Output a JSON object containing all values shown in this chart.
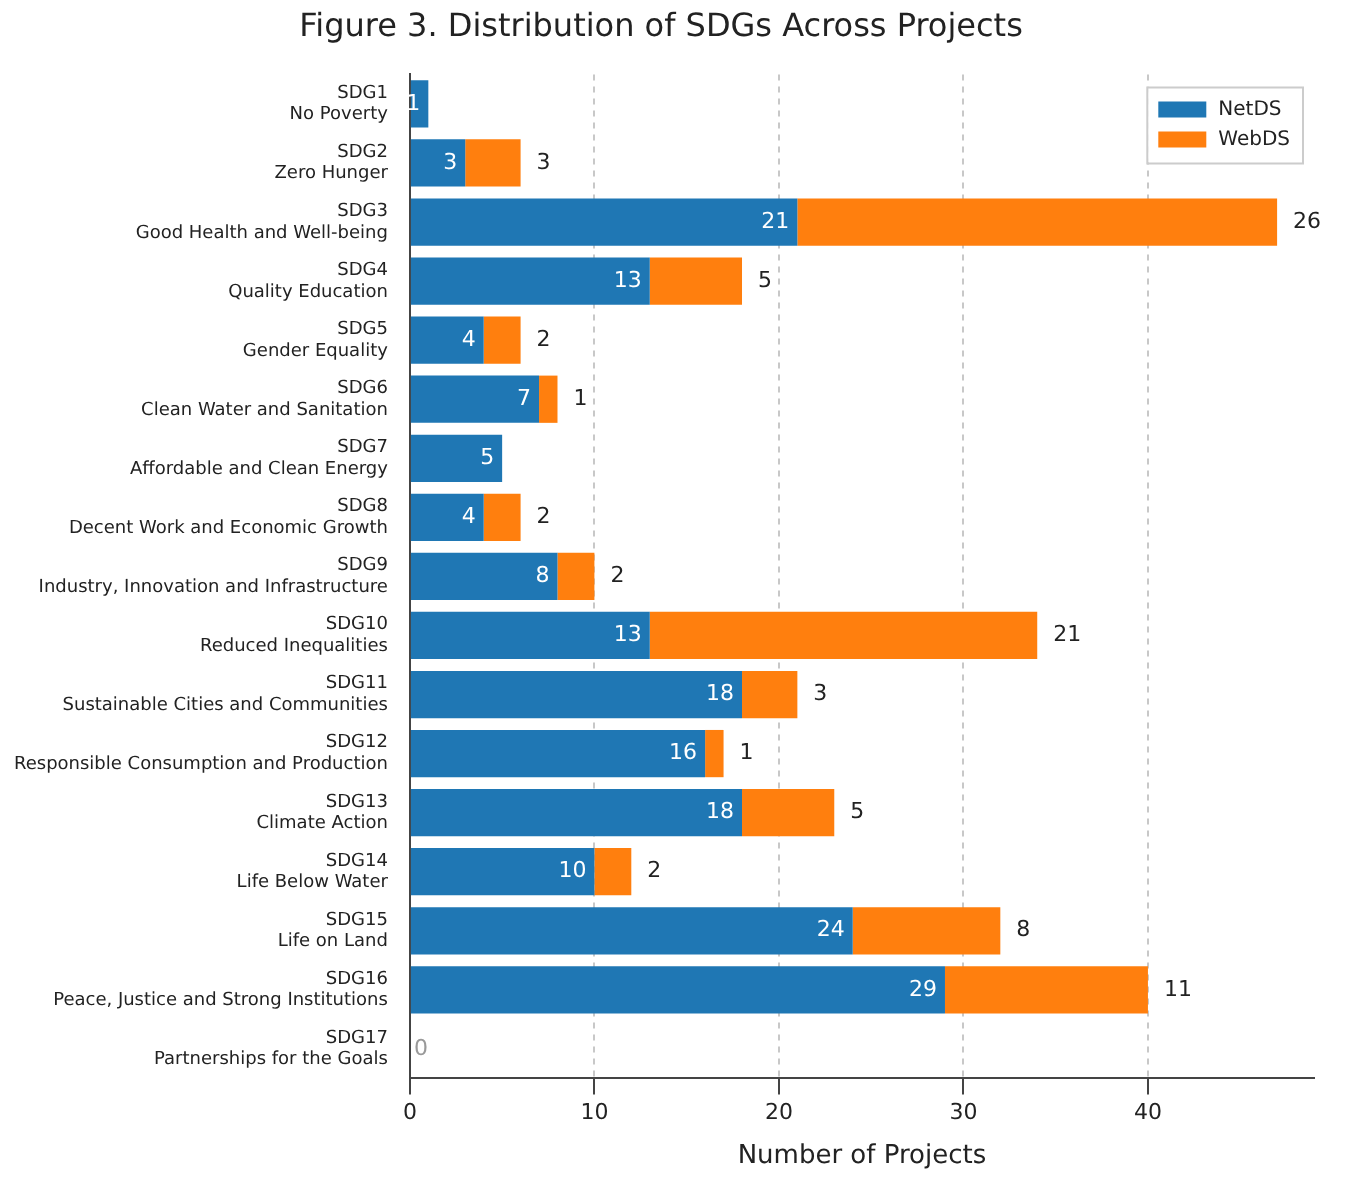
{
  "chart_data": {
    "type": "bar",
    "orientation": "horizontal",
    "stacked": true,
    "title": "Figure 3. Distribution of SDGs Across Projects",
    "xlabel": "Number of Projects",
    "categories": [
      "SDG1\nNo Poverty",
      "SDG2\nZero Hunger",
      "SDG3\nGood Health and Well-being",
      "SDG4\nQuality Education",
      "SDG5\nGender Equality",
      "SDG6\nClean Water and Sanitation",
      "SDG7\nAffordable and Clean Energy",
      "SDG8\nDecent Work and Economic Growth",
      "SDG9\nIndustry, Innovation and Infrastructure",
      "SDG10\nReduced Inequalities",
      "SDG11\nSustainable Cities and Communities",
      "SDG12\nResponsible Consumption and Production",
      "SDG13\nClimate Action",
      "SDG14\nLife Below Water",
      "SDG15\nLife on Land",
      "SDG16\nPeace, Justice and Strong Institutions",
      "SDG17\nPartnerships for the Goals"
    ],
    "series": [
      {
        "name": "NetDS",
        "color": "#1f77b4",
        "values": [
          1,
          3,
          21,
          13,
          4,
          7,
          5,
          4,
          8,
          13,
          18,
          16,
          18,
          10,
          24,
          29,
          0
        ],
        "value_labels": [
          "1",
          "3",
          "21",
          "13",
          "4",
          "7",
          "5",
          "4",
          "8",
          "13",
          "18",
          "16",
          "18",
          "10",
          "24",
          "29",
          "0"
        ]
      },
      {
        "name": "WebDS",
        "color": "#ff7f0e",
        "values": [
          0,
          3,
          26,
          5,
          2,
          1,
          0,
          2,
          2,
          21,
          3,
          1,
          5,
          2,
          8,
          11,
          0
        ],
        "value_labels": [
          null,
          "3",
          "26",
          "5",
          "2",
          "1",
          null,
          "2",
          "2",
          "21",
          "3",
          "1",
          "5",
          "2",
          "8",
          "11",
          null
        ]
      }
    ],
    "xlim": [
      0,
      49
    ],
    "xticks": [
      0,
      10,
      20,
      30,
      40
    ],
    "grid": "x",
    "legend": "top right"
  }
}
